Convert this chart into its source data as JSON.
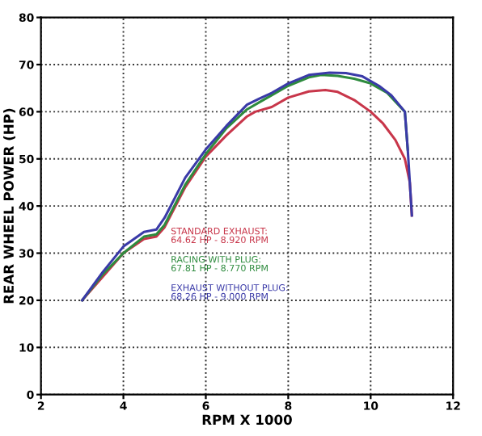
{
  "chart_data": {
    "type": "line",
    "xlabel": "RPM X 1000",
    "ylabel": "REAR WHEEL POWER (HP)",
    "xlim": [
      2,
      12
    ],
    "xticks": [
      2,
      4,
      6,
      8,
      10,
      12
    ],
    "ylim": [
      0,
      80
    ],
    "yticks": [
      0,
      10,
      20,
      30,
      40,
      50,
      60,
      70,
      80
    ],
    "grid": true,
    "legend": false,
    "marker": "none",
    "line_style": "solid",
    "series": [
      {
        "name": "STANDARD EXHAUST:",
        "color": "#c8364a",
        "x": [
          3.0,
          3.5,
          4.0,
          4.5,
          4.8,
          5.0,
          5.5,
          6.0,
          6.5,
          7.0,
          7.2,
          7.6,
          8.0,
          8.5,
          8.9,
          9.2,
          9.6,
          10.0,
          10.3,
          10.6,
          10.83,
          10.95,
          11.0
        ],
        "values": [
          20,
          25,
          30,
          33,
          33.5,
          35.5,
          44,
          50.5,
          55,
          59,
          60,
          61,
          63,
          64.3,
          64.6,
          64.2,
          62.5,
          60,
          57.5,
          54,
          50,
          45,
          38
        ]
      },
      {
        "name": "RACING WITH PLUG:",
        "color": "#2e8b3e",
        "x": [
          3.0,
          3.5,
          4.0,
          4.5,
          4.8,
          5.0,
          5.5,
          6.0,
          6.5,
          7.0,
          7.3,
          7.6,
          8.0,
          8.5,
          8.8,
          9.2,
          9.6,
          10.0,
          10.4,
          10.83,
          10.9
        ],
        "values": [
          20,
          25.5,
          30,
          33.5,
          34,
          36,
          44.5,
          51,
          56.5,
          60.5,
          62,
          63.5,
          65.5,
          67.3,
          67.8,
          67.6,
          67,
          66,
          64,
          60,
          52
        ]
      },
      {
        "name": "EXHAUST WITHOUT PLUG:",
        "color": "#3a3aa8",
        "x": [
          3.0,
          3.5,
          4.0,
          4.5,
          4.8,
          5.0,
          5.5,
          6.0,
          6.5,
          7.0,
          7.3,
          7.6,
          8.0,
          8.5,
          9.0,
          9.4,
          9.8,
          10.2,
          10.5,
          10.83,
          10.9,
          10.95,
          11.0
        ],
        "values": [
          20,
          26,
          31.4,
          34.5,
          35,
          37.5,
          46,
          52,
          57,
          61.5,
          62.8,
          64,
          66,
          67.8,
          68.3,
          68.2,
          67.5,
          65.5,
          63.5,
          60,
          52,
          45,
          38
        ]
      }
    ],
    "annotations": [
      "64.62 HP - 8.920 RPM",
      "67.81 HP - 8.770 RPM",
      "68.26 HP - 9.000 RPM"
    ]
  }
}
